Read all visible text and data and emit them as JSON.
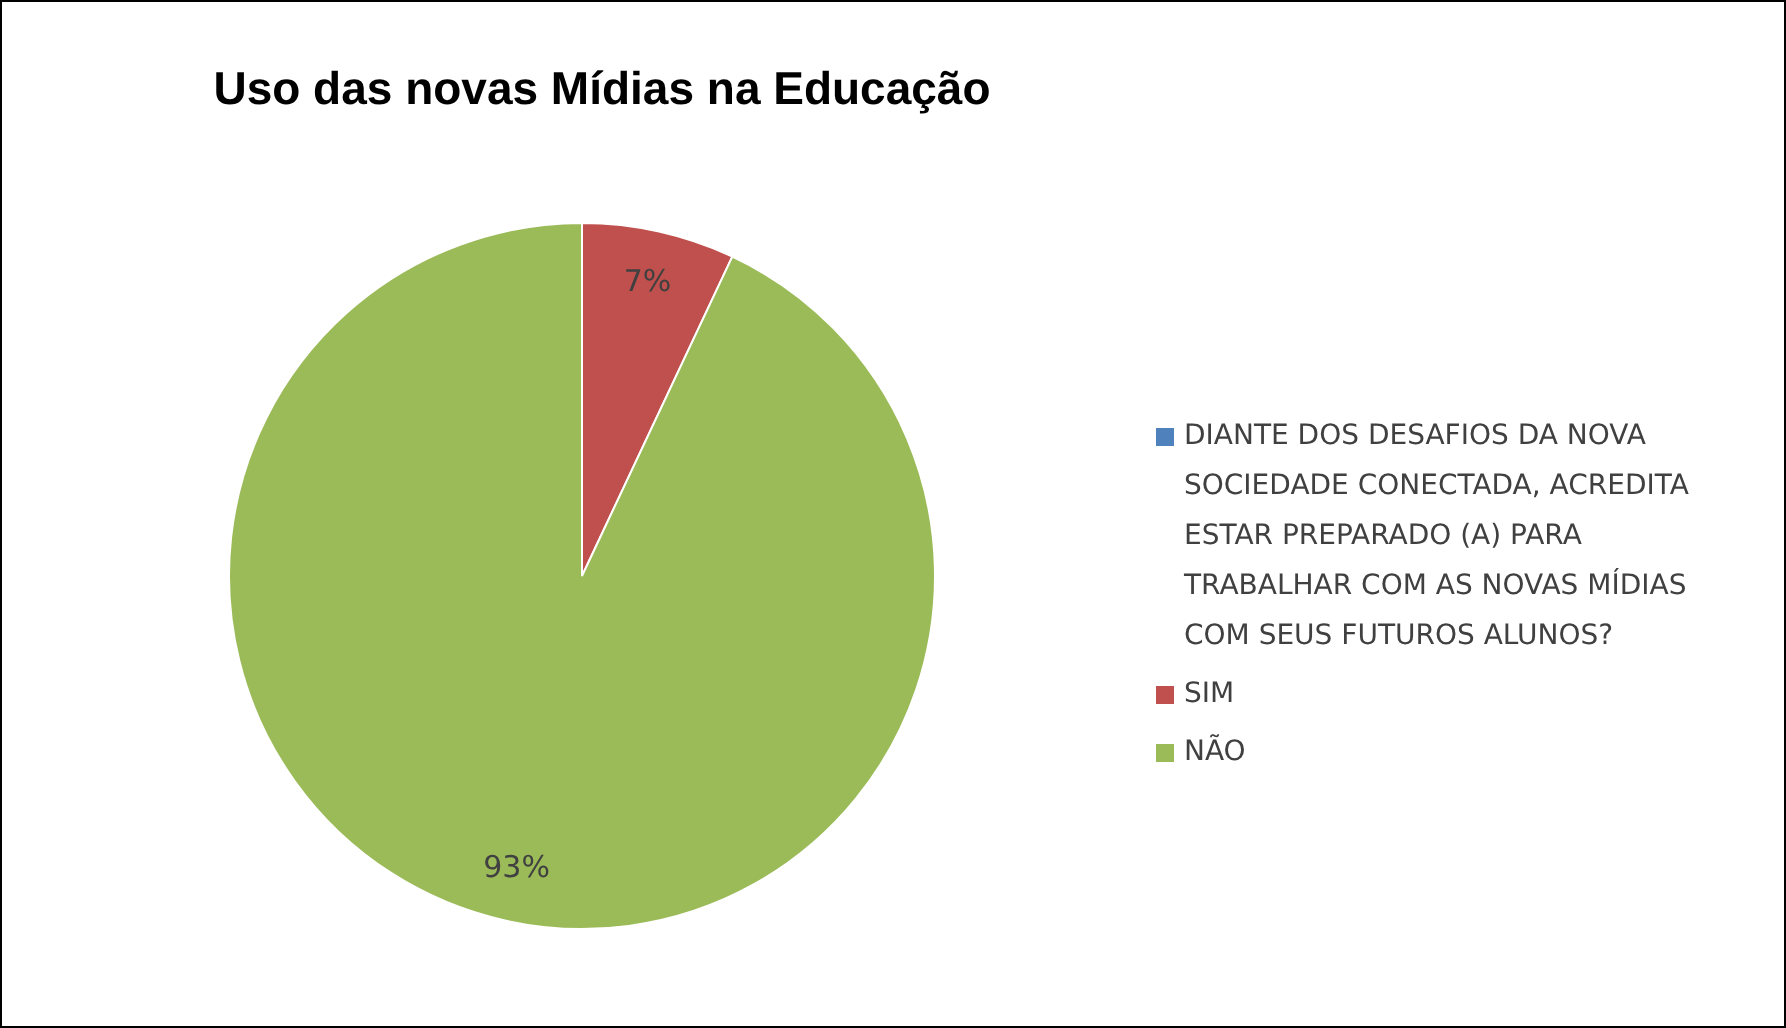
{
  "chart_data": {
    "type": "pie",
    "title": "Uso das novas Mídias na Educação",
    "categories": [
      "DIANTE DOS DESAFIOS DA NOVA SOCIEDADE CONECTADA, ACREDITA ESTAR PREPARADO (A) PARA TRABALHAR COM AS NOVAS MÍDIAS COM SEUS FUTUROS ALUNOS?",
      "SIM",
      "NÃO"
    ],
    "values": [
      0,
      7,
      93
    ],
    "colors": [
      "#4f81bd",
      "#c0504d",
      "#9bbb59"
    ],
    "value_labels": [
      null,
      "7%",
      "93%"
    ],
    "legend": "right"
  }
}
